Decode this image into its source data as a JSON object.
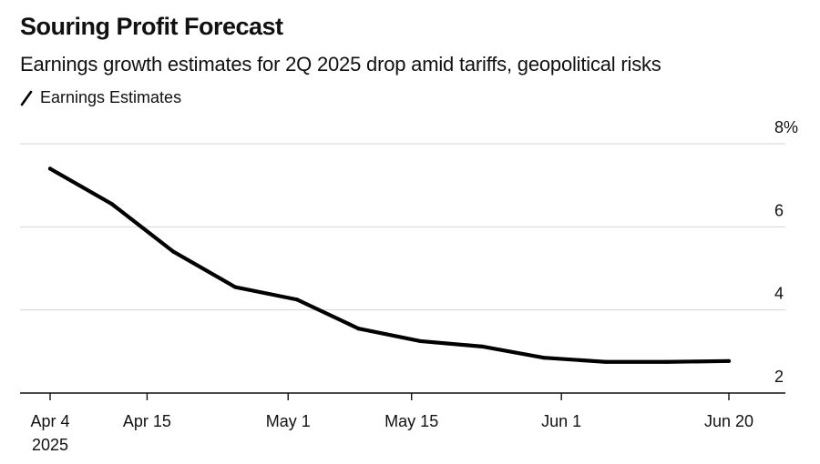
{
  "header": {
    "title": "Souring Profit Forecast",
    "subtitle": "Earnings growth estimates for 2Q 2025 drop amid tariffs, geopolitical risks"
  },
  "chart_data": {
    "type": "line",
    "title": "Souring Profit Forecast",
    "subtitle": "Earnings growth estimates for 2Q 2025 drop amid tariffs, geopolitical risks",
    "xlabel": "",
    "ylabel": "",
    "ylim": [
      2,
      8
    ],
    "y_ticks": [
      {
        "value": 2,
        "label": "2"
      },
      {
        "value": 4,
        "label": "4"
      },
      {
        "value": 6,
        "label": "6"
      },
      {
        "value": 8,
        "label": "8%"
      }
    ],
    "x_ticks": [
      {
        "day": 0,
        "label": "Apr 4",
        "sublabel": "2025"
      },
      {
        "day": 11,
        "label": "Apr 15",
        "sublabel": ""
      },
      {
        "day": 27,
        "label": "May 1",
        "sublabel": ""
      },
      {
        "day": 41,
        "label": "May 15",
        "sublabel": ""
      },
      {
        "day": 58,
        "label": "Jun 1",
        "sublabel": ""
      },
      {
        "day": 77,
        "label": "Jun 20",
        "sublabel": ""
      }
    ],
    "x_range_days": [
      -3,
      81
    ],
    "legend": {
      "position": "top-left",
      "entries": [
        "Earnings Estimates"
      ]
    },
    "grid": true,
    "series": [
      {
        "name": "Earnings Estimates",
        "color": "#000000",
        "x_days": [
          0,
          7,
          14,
          21,
          28,
          35,
          42,
          49,
          56,
          63,
          70,
          77
        ],
        "values": [
          7.4,
          6.55,
          5.4,
          4.55,
          4.25,
          3.55,
          3.25,
          3.12,
          2.85,
          2.75,
          2.75,
          2.77
        ]
      }
    ]
  }
}
